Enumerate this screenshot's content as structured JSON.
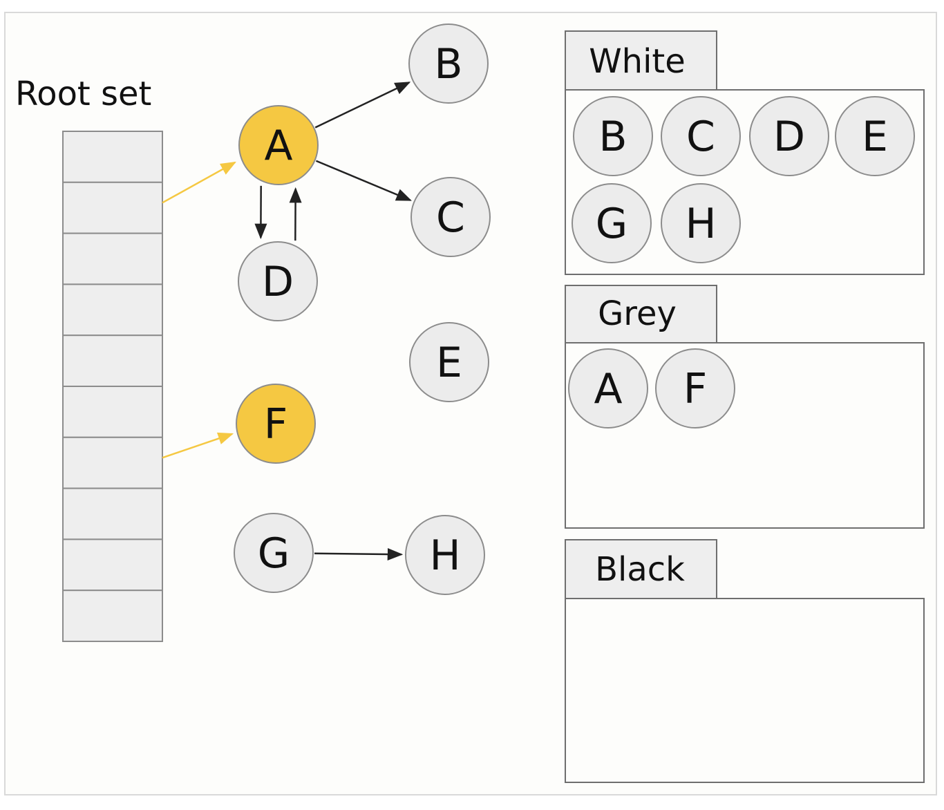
{
  "colors": {
    "background": "#fdfdfb",
    "frame": "#d9d9d9",
    "node_fill": "#ececec",
    "node_stroke": "#8c8c8c",
    "root_node_fill": "#f5c842",
    "root_edge": "#f5c842",
    "edge": "#222222",
    "cell_fill": "#eeeeee",
    "cell_stroke": "#8c8c8c",
    "panel_stroke": "#6e6e6e",
    "tab_fill": "#eeeeee"
  },
  "root_set": {
    "title": "Root set",
    "cell_count": 10
  },
  "graph": {
    "nodes": {
      "A": {
        "label": "A",
        "reachable_from_root": true
      },
      "B": {
        "label": "B",
        "reachable_from_root": false
      },
      "C": {
        "label": "C",
        "reachable_from_root": false
      },
      "D": {
        "label": "D",
        "reachable_from_root": false
      },
      "E": {
        "label": "E",
        "reachable_from_root": false
      },
      "F": {
        "label": "F",
        "reachable_from_root": true
      },
      "G": {
        "label": "G",
        "reachable_from_root": false
      },
      "H": {
        "label": "H",
        "reachable_from_root": false
      }
    },
    "edges": [
      {
        "from": "A",
        "to": "B"
      },
      {
        "from": "A",
        "to": "C"
      },
      {
        "from": "A",
        "to": "D"
      },
      {
        "from": "D",
        "to": "A"
      },
      {
        "from": "G",
        "to": "H"
      }
    ],
    "root_references": [
      {
        "cell": 1,
        "to": "A"
      },
      {
        "cell": 6,
        "to": "F"
      }
    ]
  },
  "sets": {
    "white": {
      "title": "White",
      "members": [
        "B",
        "C",
        "D",
        "E",
        "G",
        "H"
      ]
    },
    "grey": {
      "title": "Grey",
      "members": [
        "A",
        "F"
      ]
    },
    "black": {
      "title": "Black",
      "members": []
    }
  }
}
